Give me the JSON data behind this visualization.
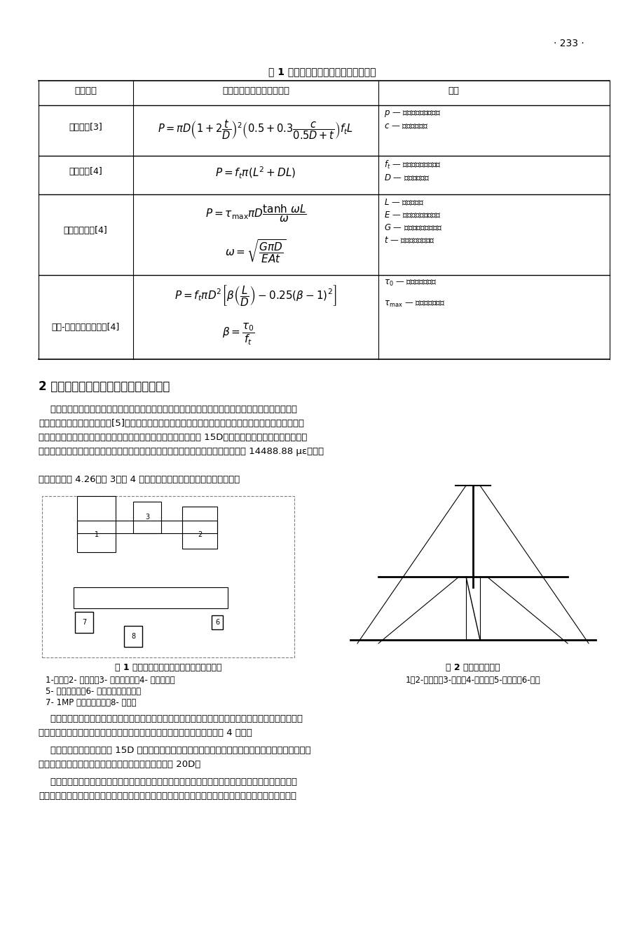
{
  "page_number": "· 233 ·",
  "table_title": "表 1 几种破坏的极限承载能力计算公式",
  "col_headers": [
    "破坏形态",
    "静力极限承载能力计算公式",
    "符号"
  ],
  "rows": [
    {
      "type": "剪裂破坏[3]",
      "formula": "P = πD\\left(1+2\\frac{t}{D}\\right)^2\\left(0.5+0.3\\frac{c}{0.5D+t}\\right)f_t L",
      "symbol": ""
    },
    {
      "type": "锥体破坏[4]",
      "formula": "P = f_t \\pi(L^2 + DL)",
      "symbol": ""
    },
    {
      "type": "粘结滑移破坏[4]",
      "formula": "P = \\tau_{\\max}\\pi D \\frac{\\tanh\\omega L}{\\omega}\n\\omega = \\sqrt{\\frac{G\\pi D}{EAt}}",
      "symbol": ""
    },
    {
      "type": "锥体-粘结滑移复合破坏[4]",
      "formula": "P = f_t\\pi D^2\\left[\\beta\\left(\\frac{L}{D}\\right)-0.25(\\beta-1)^2\\right]\n\\beta = \\frac{\\tau_0}{f_t}",
      "symbol": ""
    }
  ],
  "symbols_col": [
    "p－静力极限承载能力；",
    "c－保护层厚度；",
    "f_t－混凝土的抗拉强度；",
    "D－钢筋的直径；",
    "L－锚固长度；",
    "E－粘结剂的弹性模量；",
    "G－粘结剂的剪切模量；",
    "t－胶锚固体的厚度；",
    "τ_0－平均粘结应力；",
    "τ_max－最大粘结应力。"
  ],
  "section_title": "2 后锚钢筋混凝土构件的滞回特性与延性",
  "paragraph1": "    为研究后锚钢筋混凝土构件的延性与抗震性能，作者首先采用钢筋混凝土受弯构件，研究了构件在低周反复周期荷载下的滞回性能[5]。试验构件分两种，一种是整体一次浇注的普通混凝土受弯构件，一种是采用后锚钢筋两次浇注的混凝土受弯构件，后锚钢筋的锚固长度为 15D。从试验现象看，两种构件的破坏现象基本相同，后锚构件梁根都也形成了塑性胶，实测梁根部钢筋的最大应变达到了 14488.88 με，位移延性比达到了 4.26。图 3、图 4 分别为整体浇注梁与后锚梁的滞回曲线。",
  "fig1_caption": "图 1 受弯试件低周反复试验加载装置示意图",
  "fig2_caption": "图 2 加载系统示意图",
  "fig1_labels": "1-试件；2- 反力墙；3- 液压千斤顶；4- 压力传感器\n5- 导杆引伸仪；6- 电液伺服加压装置；\n7- 1MP 数据采集系统；8- 计算机",
  "fig2_labels": "1，2-反力架；3-横梁；4-作动器；5-千斤顶；6-试件",
  "paragraph2": "    从滞回曲线看，植筋锚固构件在周期反复荷载作用下，钢筋达到屈服后，仍具有较好的变形能力，其延性虽不如整浇构件，但在施工质量有保证的情况下，其位移延性比也能达到 4 以上。",
  "paragraph3": "    从试验可见，在锚固长度 15D 的情况下，锚固构件的延性不如整浇构件。为进一步验证后锚构件的延性，研究了压弯构件的恢复力特性，钢筋锚固深度采用 20D。",
  "paragraph4": "    试验表明，整浇压弯构件与植筋压弯构件的试验现象基本相同。在初期加载阶段，构件基本上处于弹性工作阶段，试件没有出现裂缝。随着荷载的增大，在试件节点的根部出现肉眼可见的裂缝。循环荷载继",
  "background_color": "#ffffff",
  "text_color": "#000000",
  "font_size_body": 9,
  "font_size_title": 10,
  "font_size_section": 11
}
